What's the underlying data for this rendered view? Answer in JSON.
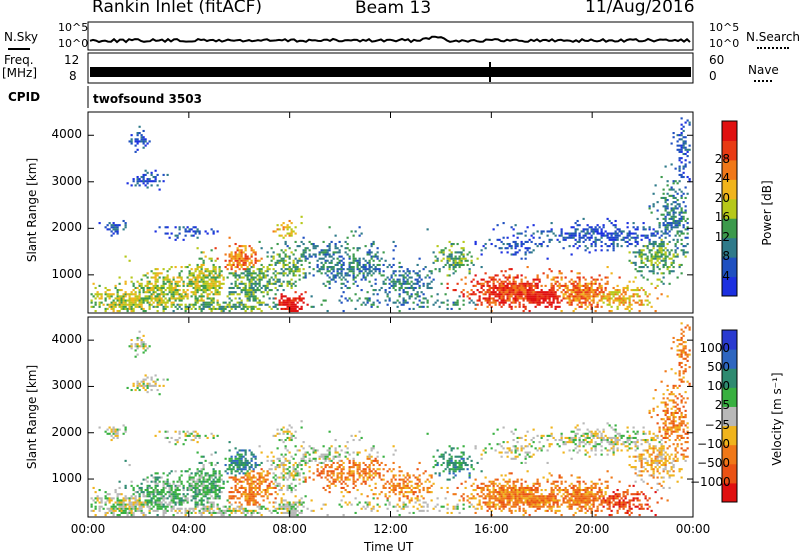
{
  "header": {
    "station": "Rankin Inlet (fitACF)",
    "beam": "Beam 13",
    "date": "11/Aug/2016"
  },
  "top_panels": {
    "noise": {
      "left_label": "N.Sky",
      "right_label": "N.Search",
      "right_ticks": [
        "10^5",
        "10^0"
      ],
      "left_ticks": [
        "10^5",
        "10^0"
      ]
    },
    "freq": {
      "left_label_line1": "Freq.",
      "left_label_line2": "[MHz]",
      "right_label": "Nave",
      "left_ticks": [
        "12",
        "8"
      ],
      "right_ticks": [
        "60",
        "0"
      ]
    },
    "cpid": {
      "label": "CPID",
      "value": "twofsound 3503"
    }
  },
  "colors": {
    "power_scale": [
      "#1c30e0",
      "#1f50c0",
      "#2f7a8a",
      "#3c9a4c",
      "#b6c81a",
      "#f0b41c",
      "#f07818",
      "#e83a14",
      "#e01010"
    ],
    "velocity_scale": [
      "#2a3ad0",
      "#2e66c0",
      "#2e8a70",
      "#38b040",
      "#b8b8b8",
      "#f0b41c",
      "#f07818",
      "#ea5214",
      "#e01010"
    ],
    "ground_scatter": "#b8b8b8"
  },
  "chart_data": [
    {
      "type": "heatmap",
      "name": "power",
      "ylabel": "Slant Range [km]",
      "xlabel": "Time UT",
      "y_ticks": [
        "1000",
        "2000",
        "3000",
        "4000"
      ],
      "x_ticks": [
        "00:00",
        "04:00",
        "08:00",
        "12:00",
        "16:00",
        "20:00",
        "00:00"
      ],
      "ylim": [
        180,
        4500
      ],
      "xlim_hours": [
        0,
        24
      ],
      "colorbar": {
        "label": "Power [dB]",
        "ticks": [
          "4",
          "8",
          "12",
          "16",
          "20",
          "24",
          "28"
        ]
      }
    },
    {
      "type": "heatmap",
      "name": "velocity",
      "ylabel": "Slant Range [km]",
      "xlabel": "Time UT",
      "y_ticks": [
        "1000",
        "2000",
        "3000",
        "4000"
      ],
      "x_ticks": [
        "00:00",
        "04:00",
        "08:00",
        "12:00",
        "16:00",
        "20:00",
        "00:00"
      ],
      "ylim": [
        180,
        4500
      ],
      "xlim_hours": [
        0,
        24
      ],
      "colorbar": {
        "label": "Velocity [m s⁻¹]",
        "ticks": [
          "1000",
          "500",
          "100",
          "25",
          "−25",
          "−100",
          "−500",
          "−1000"
        ]
      }
    }
  ],
  "xaxis_title": "Time UT"
}
